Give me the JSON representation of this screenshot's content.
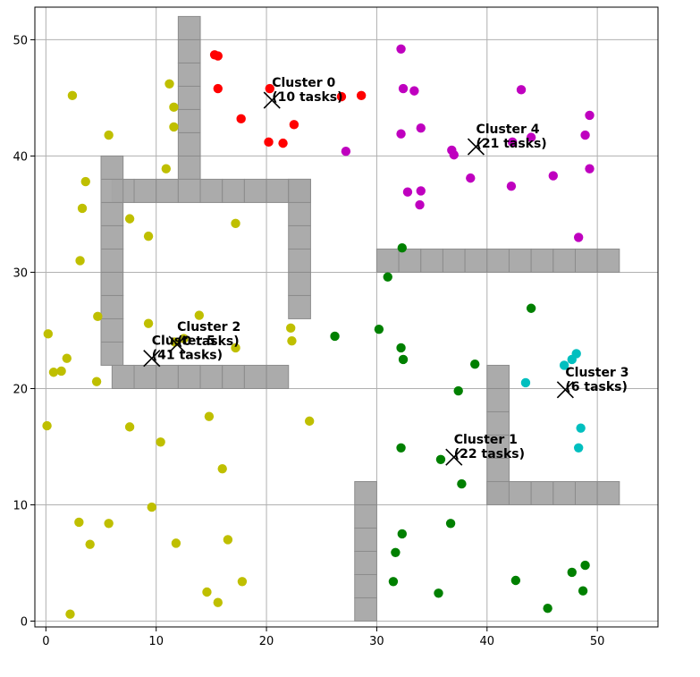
{
  "chart_data": {
    "type": "scatter",
    "title": "",
    "xlabel": "",
    "ylabel": "",
    "xlim": [
      -1,
      55.5
    ],
    "ylim": [
      -0.5,
      52.8
    ],
    "xticks": [
      0,
      10,
      20,
      30,
      40,
      50
    ],
    "yticks": [
      0,
      10,
      20,
      30,
      40,
      50
    ],
    "grid": true,
    "colors": {
      "obstacle_fill": "#a6a6a6",
      "obstacle_edge": "#8c8c8c",
      "grid": "#b0b0b0"
    },
    "obstacles": [
      {
        "x0": 12,
        "y0": 38,
        "x1": 14,
        "y1": 52,
        "cell_h": 2
      },
      {
        "x0": 6,
        "y0": 36,
        "x1": 24,
        "y1": 38,
        "cell_w": 2
      },
      {
        "x0": 5,
        "y0": 22,
        "x1": 7,
        "y1": 40,
        "cell_h": 2
      },
      {
        "x0": 22,
        "y0": 26,
        "x1": 24,
        "y1": 38,
        "cell_h": 2
      },
      {
        "x0": 6,
        "y0": 20,
        "x1": 22,
        "y1": 22,
        "cell_w": 2
      },
      {
        "x0": 30,
        "y0": 30,
        "x1": 52,
        "y1": 32,
        "cell_w": 2
      },
      {
        "x0": 40,
        "y0": 10,
        "x1": 42,
        "y1": 22,
        "cell_h": 2
      },
      {
        "x0": 40,
        "y0": 10,
        "x1": 52,
        "y1": 12,
        "cell_w": 2
      },
      {
        "x0": 28,
        "y0": 0,
        "x1": 30,
        "y1": 12,
        "cell_h": 2
      }
    ],
    "series": [
      {
        "color": "#ff0000",
        "points": [
          [
            15.3,
            48.7
          ],
          [
            15.6,
            48.6
          ],
          [
            20.3,
            45.8
          ],
          [
            15.6,
            45.8
          ],
          [
            17.7,
            43.2
          ],
          [
            22.5,
            42.7
          ],
          [
            20.2,
            41.2
          ],
          [
            21.5,
            41.1
          ],
          [
            26.8,
            45.1
          ],
          [
            28.6,
            45.2
          ]
        ]
      },
      {
        "color": "#008000",
        "points": [
          [
            32.3,
            32.1
          ],
          [
            31.0,
            29.6
          ],
          [
            30.2,
            25.1
          ],
          [
            26.2,
            24.5
          ],
          [
            32.2,
            23.5
          ],
          [
            32.4,
            22.5
          ],
          [
            38.9,
            22.1
          ],
          [
            37.4,
            19.8
          ],
          [
            44.0,
            26.9
          ],
          [
            32.2,
            14.9
          ],
          [
            35.8,
            13.9
          ],
          [
            37.7,
            11.8
          ],
          [
            36.7,
            8.4
          ],
          [
            32.3,
            7.5
          ],
          [
            31.7,
            5.9
          ],
          [
            31.5,
            3.4
          ],
          [
            35.6,
            2.4
          ],
          [
            42.6,
            3.5
          ],
          [
            45.5,
            1.1
          ],
          [
            47.7,
            4.2
          ],
          [
            48.9,
            4.8
          ],
          [
            48.7,
            2.6
          ]
        ]
      },
      {
        "color": "#bfbf00",
        "points": [
          [
            2.4,
            45.2
          ],
          [
            11.2,
            46.2
          ],
          [
            11.6,
            44.2
          ],
          [
            5.7,
            41.8
          ],
          [
            11.6,
            42.5
          ],
          [
            10.9,
            38.9
          ],
          [
            3.6,
            37.8
          ],
          [
            3.3,
            35.5
          ],
          [
            7.6,
            34.6
          ],
          [
            9.3,
            33.1
          ],
          [
            17.2,
            34.2
          ],
          [
            3.1,
            31.0
          ],
          [
            4.7,
            26.2
          ],
          [
            9.3,
            25.6
          ],
          [
            13.9,
            26.3
          ],
          [
            22.2,
            25.2
          ],
          [
            22.3,
            24.1
          ],
          [
            17.2,
            23.5
          ],
          [
            0.2,
            24.7
          ],
          [
            0.7,
            21.4
          ],
          [
            1.4,
            21.5
          ],
          [
            1.9,
            22.6
          ],
          [
            4.6,
            20.6
          ],
          [
            0.1,
            16.8
          ],
          [
            7.6,
            16.7
          ],
          [
            10.4,
            15.4
          ],
          [
            14.8,
            17.6
          ],
          [
            16.0,
            13.1
          ],
          [
            23.9,
            17.2
          ],
          [
            9.6,
            9.8
          ],
          [
            3.0,
            8.5
          ],
          [
            5.7,
            8.4
          ],
          [
            4.0,
            6.6
          ],
          [
            11.8,
            6.7
          ],
          [
            16.5,
            7.0
          ],
          [
            17.8,
            3.4
          ],
          [
            14.6,
            2.5
          ],
          [
            15.6,
            1.6
          ],
          [
            2.2,
            0.6
          ],
          [
            11.7,
            24.0
          ],
          [
            12.5,
            24.3
          ]
        ]
      },
      {
        "color": "#00bfbf",
        "points": [
          [
            43.5,
            20.5
          ],
          [
            47.0,
            22.0
          ],
          [
            47.7,
            22.5
          ],
          [
            48.1,
            23.0
          ],
          [
            48.5,
            16.6
          ],
          [
            48.3,
            14.9
          ]
        ]
      },
      {
        "color": "#bf00bf",
        "points": [
          [
            32.2,
            49.2
          ],
          [
            32.4,
            45.8
          ],
          [
            33.4,
            45.6
          ],
          [
            43.1,
            45.7
          ],
          [
            49.3,
            43.5
          ],
          [
            34.0,
            42.4
          ],
          [
            32.2,
            41.9
          ],
          [
            44.0,
            41.6
          ],
          [
            42.3,
            41.2
          ],
          [
            48.9,
            41.8
          ],
          [
            27.2,
            40.4
          ],
          [
            36.8,
            40.5
          ],
          [
            37.0,
            40.1
          ],
          [
            49.3,
            38.9
          ],
          [
            46.0,
            38.3
          ],
          [
            38.5,
            38.1
          ],
          [
            42.2,
            37.4
          ],
          [
            32.8,
            36.9
          ],
          [
            34.0,
            37.0
          ],
          [
            33.9,
            35.8
          ],
          [
            48.3,
            33.0
          ]
        ]
      }
    ],
    "centroids": [
      {
        "x": 20.5,
        "y": 44.8,
        "name": "Cluster 0",
        "tasks": "(10 tasks)"
      },
      {
        "x": 37.0,
        "y": 14.1,
        "name": "Cluster 1",
        "tasks": "(22 tasks)"
      },
      {
        "x": 11.9,
        "y": 23.8,
        "name": "Cluster 2",
        "tasks": "(0 tasks)"
      },
      {
        "x": 47.1,
        "y": 19.9,
        "name": "Cluster 3",
        "tasks": "(6 tasks)"
      },
      {
        "x": 39.0,
        "y": 40.8,
        "name": "Cluster 4",
        "tasks": "(21 tasks)"
      },
      {
        "x": 9.6,
        "y": 22.6,
        "name": "Cluster 5",
        "tasks": "(41 tasks)"
      }
    ]
  }
}
